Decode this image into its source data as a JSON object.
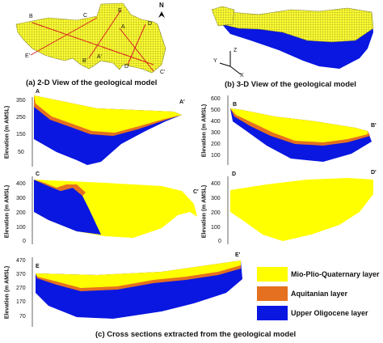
{
  "top_left": {
    "north": "N",
    "points": [
      "B",
      "C",
      "E",
      "A",
      "D",
      "E'",
      "B'",
      "A'",
      "D'",
      "C'"
    ],
    "caption": "(a) 2-D View of the geological model"
  },
  "top_right": {
    "axes": {
      "z": "Z",
      "y": "Y",
      "x": "X"
    },
    "caption": "(b) 3-D View of the geological model"
  },
  "sections": {
    "ylabel": "Elevation (m AMSL)",
    "aa": {
      "start": "A",
      "end": "A'",
      "ticks": [
        "350",
        "250",
        "150",
        "50"
      ]
    },
    "bb": {
      "start": "B",
      "end": "B'",
      "ticks": [
        "600",
        "500",
        "400",
        "300",
        "200",
        "100"
      ]
    },
    "cc": {
      "start": "C",
      "end": "C'",
      "ticks": [
        "400",
        "300",
        "200",
        "100",
        "0"
      ]
    },
    "dd": {
      "start": "D",
      "end": "D'",
      "ticks": [
        "400",
        "300",
        "200",
        "100",
        "0"
      ]
    },
    "ee": {
      "start": "E",
      "end": "E'",
      "ticks": [
        "470",
        "370",
        "270",
        "170",
        "70"
      ]
    }
  },
  "legend": {
    "items": [
      {
        "label": "Mio-Plio-Quaternary layer",
        "color": "#ffff00"
      },
      {
        "label": "Aquitanian layer",
        "color": "#e5701f"
      },
      {
        "label": "Upper Oligocene layer",
        "color": "#0a17e0"
      }
    ]
  },
  "bottom_caption": "(c) Cross sections extracted from the geological model"
}
